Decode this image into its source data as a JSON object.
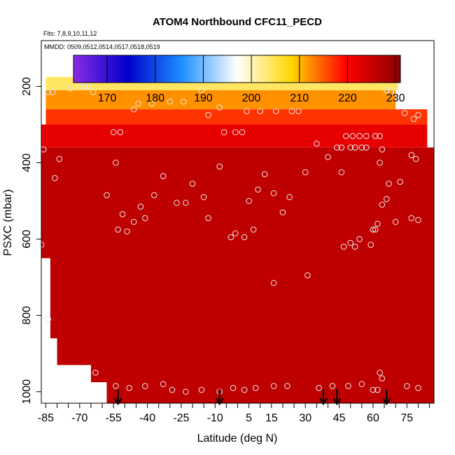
{
  "chart_data": {
    "type": "heatmap",
    "title": "ATOM4 Northbound CFC11_PECD",
    "subtitle_flights": "Flts: 7,8,9,10,11,12",
    "subtitle_dates": "MMDD: 0509,0512,0514,0517,0518,0519",
    "xlabel": "Latitude (deg N)",
    "ylabel": "PSXC (mbar)",
    "xlim": [
      -87,
      87
    ],
    "ylim": [
      1030,
      80
    ],
    "x_ticks": [
      -85,
      -70,
      -55,
      -40,
      -25,
      -10,
      5,
      15,
      30,
      45,
      60,
      75
    ],
    "y_ticks": [
      200,
      400,
      600,
      800,
      1000
    ],
    "colorbar": {
      "min": 163,
      "max": 231,
      "ticks": [
        170,
        180,
        190,
        200,
        210,
        220,
        230
      ],
      "colors": [
        "#8a2be2",
        "#0000cd",
        "#1e90ff",
        "#ffffff",
        "#ffd700",
        "#ff0000",
        "#8b0000"
      ]
    },
    "heatmap_layers": [
      {
        "p_top": 175,
        "p_bot": 210,
        "lat_from": -85,
        "lat_to": 71,
        "value": 204
      },
      {
        "p_top": 210,
        "p_bot": 260,
        "lat_from": -85,
        "lat_to": 70,
        "value": 212
      },
      {
        "p_top": 260,
        "p_bot": 300,
        "lat_from": -85,
        "lat_to": 84,
        "value": 217
      },
      {
        "p_top": 300,
        "p_bot": 360,
        "lat_from": -87,
        "lat_to": 84,
        "value": 222
      },
      {
        "p_top": 360,
        "p_bot": 1030,
        "lat_from": -87,
        "lat_to": 87,
        "value": 226
      }
    ],
    "sample_points": [
      {
        "lat": -84,
        "p": 215
      },
      {
        "lat": -82,
        "p": 215
      },
      {
        "lat": -74,
        "p": 205
      },
      {
        "lat": -70,
        "p": 200
      },
      {
        "lat": -68,
        "p": 200
      },
      {
        "lat": -66,
        "p": 200
      },
      {
        "lat": -64,
        "p": 215
      },
      {
        "lat": -55,
        "p": 320
      },
      {
        "lat": -52,
        "p": 320
      },
      {
        "lat": -46,
        "p": 260
      },
      {
        "lat": -44,
        "p": 245
      },
      {
        "lat": -38,
        "p": 245
      },
      {
        "lat": -30,
        "p": 240
      },
      {
        "lat": -24,
        "p": 240
      },
      {
        "lat": -16,
        "p": 210
      },
      {
        "lat": -13,
        "p": 275
      },
      {
        "lat": -8,
        "p": 255
      },
      {
        "lat": -6,
        "p": 320
      },
      {
        "lat": -1,
        "p": 320
      },
      {
        "lat": 2,
        "p": 320
      },
      {
        "lat": 4,
        "p": 265
      },
      {
        "lat": 10,
        "p": 265
      },
      {
        "lat": 17,
        "p": 265
      },
      {
        "lat": 24,
        "p": 265
      },
      {
        "lat": 27,
        "p": 265
      },
      {
        "lat": 33,
        "p": 185
      },
      {
        "lat": 35,
        "p": 350
      },
      {
        "lat": 40,
        "p": 385
      },
      {
        "lat": 44,
        "p": 360
      },
      {
        "lat": 46,
        "p": 360
      },
      {
        "lat": 48,
        "p": 330
      },
      {
        "lat": 51,
        "p": 330
      },
      {
        "lat": 54,
        "p": 330
      },
      {
        "lat": 57,
        "p": 330
      },
      {
        "lat": 61,
        "p": 330
      },
      {
        "lat": 63,
        "p": 330
      },
      {
        "lat": 66,
        "p": 210
      },
      {
        "lat": 68,
        "p": 215
      },
      {
        "lat": 70,
        "p": 215
      },
      {
        "lat": 74,
        "p": 270
      },
      {
        "lat": 78,
        "p": 285
      },
      {
        "lat": 80,
        "p": 275
      },
      {
        "lat": 77,
        "p": 380
      },
      {
        "lat": -86,
        "p": 365
      },
      {
        "lat": -79,
        "p": 390
      },
      {
        "lat": -81,
        "p": 440
      },
      {
        "lat": -54,
        "p": 400
      },
      {
        "lat": -43,
        "p": 515
      },
      {
        "lat": -51,
        "p": 535
      },
      {
        "lat": -46,
        "p": 555
      },
      {
        "lat": -41,
        "p": 545
      },
      {
        "lat": -37,
        "p": 485
      },
      {
        "lat": -33,
        "p": 435
      },
      {
        "lat": -27,
        "p": 505
      },
      {
        "lat": -23,
        "p": 505
      },
      {
        "lat": -20,
        "p": 455
      },
      {
        "lat": -15,
        "p": 490
      },
      {
        "lat": -13,
        "p": 545
      },
      {
        "lat": -8,
        "p": 410
      },
      {
        "lat": -58,
        "p": 485
      },
      {
        "lat": -53,
        "p": 575
      },
      {
        "lat": -49,
        "p": 580
      },
      {
        "lat": -3,
        "p": 595
      },
      {
        "lat": -1,
        "p": 585
      },
      {
        "lat": 3,
        "p": 595
      },
      {
        "lat": 9,
        "p": 470
      },
      {
        "lat": 12,
        "p": 430
      },
      {
        "lat": 16,
        "p": 480
      },
      {
        "lat": 20,
        "p": 530
      },
      {
        "lat": 23,
        "p": 490
      },
      {
        "lat": 30,
        "p": 425
      },
      {
        "lat": 5,
        "p": 500
      },
      {
        "lat": 7,
        "p": 575
      },
      {
        "lat": 16,
        "p": 715
      },
      {
        "lat": 31,
        "p": 695
      },
      {
        "lat": 46,
        "p": 425
      },
      {
        "lat": 50,
        "p": 360
      },
      {
        "lat": 52,
        "p": 360
      },
      {
        "lat": 55,
        "p": 360
      },
      {
        "lat": 57,
        "p": 360
      },
      {
        "lat": 63,
        "p": 400
      },
      {
        "lat": 64,
        "p": 365
      },
      {
        "lat": 67,
        "p": 455
      },
      {
        "lat": 66,
        "p": 495
      },
      {
        "lat": 64,
        "p": 510
      },
      {
        "lat": 62,
        "p": 560
      },
      {
        "lat": 70,
        "p": 555
      },
      {
        "lat": 72,
        "p": 450
      },
      {
        "lat": 77,
        "p": 545
      },
      {
        "lat": 79,
        "p": 390
      },
      {
        "lat": 80,
        "p": 550
      },
      {
        "lat": 47,
        "p": 620
      },
      {
        "lat": 50,
        "p": 610
      },
      {
        "lat": 52,
        "p": 620
      },
      {
        "lat": 54,
        "p": 600
      },
      {
        "lat": 59,
        "p": 615
      },
      {
        "lat": 61,
        "p": 575
      },
      {
        "lat": 60,
        "p": 575
      },
      {
        "lat": -63,
        "p": 950
      },
      {
        "lat": -54,
        "p": 985
      },
      {
        "lat": -48,
        "p": 990
      },
      {
        "lat": -41,
        "p": 985
      },
      {
        "lat": -33,
        "p": 980
      },
      {
        "lat": -29,
        "p": 995
      },
      {
        "lat": -23,
        "p": 1000
      },
      {
        "lat": -16,
        "p": 995
      },
      {
        "lat": -8,
        "p": 1000
      },
      {
        "lat": -2,
        "p": 990
      },
      {
        "lat": 3,
        "p": 995
      },
      {
        "lat": 8,
        "p": 990
      },
      {
        "lat": 16,
        "p": 985
      },
      {
        "lat": 22,
        "p": 985
      },
      {
        "lat": 36,
        "p": 990
      },
      {
        "lat": 42,
        "p": 985
      },
      {
        "lat": 49,
        "p": 985
      },
      {
        "lat": 55,
        "p": 980
      },
      {
        "lat": 60,
        "p": 995
      },
      {
        "lat": 63,
        "p": 950
      },
      {
        "lat": 64,
        "p": 965
      },
      {
        "lat": 62,
        "p": 995
      },
      {
        "lat": 75,
        "p": 985
      },
      {
        "lat": 80,
        "p": 990
      },
      {
        "lat": -87,
        "p": 615
      },
      {
        "lat": -84,
        "p": 810
      }
    ],
    "arrow_latitudes": [
      -53,
      -8,
      38,
      44,
      66
    ]
  }
}
